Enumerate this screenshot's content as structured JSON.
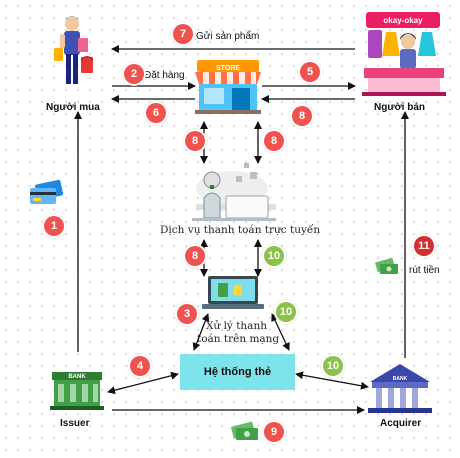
{
  "nodes": {
    "buyer": "Người mua",
    "seller": "Người bán",
    "store_sign": "STORE",
    "seller_banner": "okay-okay",
    "payment_service": "Dịch vụ thanh toán trực tuyến",
    "online_processing_line1": "Xử lý thanh",
    "online_processing_line2": "toán trên mạng",
    "card_system": "Hệ thống thẻ",
    "issuer": "Issuer",
    "issuer_bank_sign": "BANK",
    "acquirer": "Acquirer",
    "acquirer_bank_sign": "BANK"
  },
  "edge_labels": {
    "send_product": "Gửi sản phẩm",
    "order": "Đặt hàng",
    "withdraw": "rút tiền"
  },
  "badges": {
    "b1": "1",
    "b2": "2",
    "b3": "3",
    "b4": "4",
    "b5": "5",
    "b6": "6",
    "b7": "7",
    "b8a": "8",
    "b8b": "8",
    "b8c": "8",
    "b8d": "8",
    "b8e": "8",
    "b9": "9",
    "b10a": "10",
    "b10b": "10",
    "b10c": "10",
    "b11": "11"
  },
  "colors": {
    "badge_red": "#ef5350",
    "badge_green": "#8bc34a",
    "card_system_fill": "#7ee4ec",
    "arrow": "#111111"
  }
}
